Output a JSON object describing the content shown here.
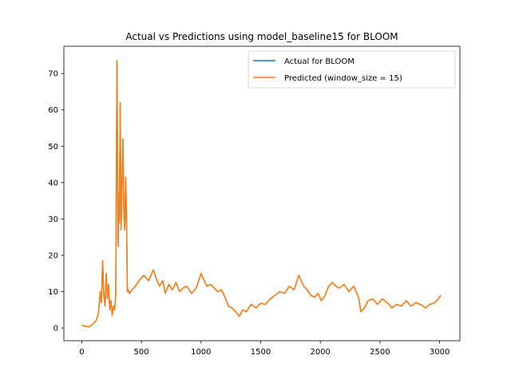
{
  "chart_data": {
    "type": "line",
    "title": "Actual vs Predictions using model_baseline15 for BLOOM",
    "xlabel": "",
    "ylabel": "",
    "xlim": [
      -150,
      3170
    ],
    "ylim": [
      -3.5,
      77.5
    ],
    "xticks": [
      0,
      500,
      1000,
      1500,
      2000,
      2500,
      3000
    ],
    "yticks": [
      0,
      10,
      20,
      30,
      40,
      50,
      60,
      70
    ],
    "grid": false,
    "legend_position": "top-right",
    "series": [
      {
        "name": "Actual for BLOOM",
        "color": "#1f77b4",
        "x": [
          0,
          30,
          60,
          90,
          120,
          140,
          155,
          165,
          175,
          185,
          195,
          205,
          215,
          225,
          235,
          245,
          255,
          265,
          275,
          285,
          295,
          305,
          310,
          315,
          322,
          330,
          338,
          345,
          352,
          360,
          368,
          375,
          382,
          390,
          400,
          420,
          450,
          480,
          520,
          560,
          600,
          620,
          650,
          680,
          700,
          730,
          760,
          790,
          820,
          850,
          880,
          920,
          960,
          1000,
          1020,
          1050,
          1080,
          1110,
          1140,
          1170,
          1200,
          1230,
          1260,
          1290,
          1320,
          1350,
          1380,
          1420,
          1460,
          1500,
          1540,
          1580,
          1620,
          1660,
          1700,
          1740,
          1780,
          1820,
          1840,
          1860,
          1890,
          1920,
          1950,
          1980,
          2010,
          2040,
          2070,
          2100,
          2130,
          2160,
          2200,
          2240,
          2280,
          2300,
          2320,
          2340,
          2370,
          2400,
          2440,
          2480,
          2520,
          2560,
          2600,
          2640,
          2680,
          2720,
          2760,
          2800,
          2840,
          2880,
          2920,
          2960,
          2990,
          3010
        ],
        "y": [
          0.8,
          0.5,
          0.3,
          1.0,
          2.0,
          4.0,
          10.0,
          7.0,
          18.5,
          9.0,
          6.0,
          15.0,
          8.0,
          12.0,
          5.0,
          7.5,
          3.5,
          6.0,
          5.0,
          9.0,
          73.5,
          22.5,
          37.0,
          29.0,
          62.0,
          27.0,
          40.0,
          52.0,
          33.0,
          27.0,
          41.5,
          32.0,
          10.0,
          10.5,
          9.5,
          10.5,
          11.5,
          13.0,
          14.5,
          13.0,
          16.0,
          14.0,
          11.5,
          13.0,
          9.5,
          12.0,
          10.5,
          12.5,
          10.0,
          11.0,
          11.5,
          9.5,
          11.0,
          15.0,
          13.5,
          11.5,
          12.0,
          11.0,
          10.0,
          10.5,
          8.5,
          6.0,
          5.5,
          4.5,
          3.2,
          5.0,
          4.5,
          6.5,
          5.5,
          6.8,
          6.5,
          8.0,
          9.0,
          10.0,
          9.5,
          11.5,
          10.5,
          14.5,
          13.0,
          11.5,
          10.5,
          9.0,
          8.5,
          9.5,
          7.5,
          9.0,
          11.5,
          12.5,
          11.5,
          11.0,
          12.0,
          10.0,
          11.5,
          10.0,
          8.5,
          4.5,
          5.5,
          7.5,
          8.0,
          6.5,
          8.0,
          7.0,
          5.5,
          6.5,
          6.0,
          7.5,
          6.0,
          7.0,
          6.5,
          5.5,
          6.5,
          7.0,
          8.0,
          9.0
        ]
      },
      {
        "name": "Predicted (window_size = 15)",
        "color": "#ff7f0e",
        "x": [
          0,
          30,
          60,
          90,
          120,
          140,
          155,
          165,
          175,
          185,
          195,
          205,
          215,
          225,
          235,
          245,
          255,
          265,
          275,
          285,
          295,
          305,
          310,
          315,
          322,
          330,
          338,
          345,
          352,
          360,
          368,
          375,
          382,
          390,
          400,
          420,
          450,
          480,
          520,
          560,
          600,
          620,
          650,
          680,
          700,
          730,
          760,
          790,
          820,
          850,
          880,
          920,
          960,
          1000,
          1020,
          1050,
          1080,
          1110,
          1140,
          1170,
          1200,
          1230,
          1260,
          1290,
          1320,
          1350,
          1380,
          1420,
          1460,
          1500,
          1540,
          1580,
          1620,
          1660,
          1700,
          1740,
          1780,
          1820,
          1840,
          1860,
          1890,
          1920,
          1950,
          1980,
          2010,
          2040,
          2070,
          2100,
          2130,
          2160,
          2200,
          2240,
          2280,
          2300,
          2320,
          2340,
          2370,
          2400,
          2440,
          2480,
          2520,
          2560,
          2600,
          2640,
          2680,
          2720,
          2760,
          2800,
          2840,
          2880,
          2920,
          2960,
          2990,
          3010
        ],
        "y": [
          0.8,
          0.5,
          0.3,
          1.0,
          2.0,
          4.0,
          10.0,
          7.0,
          18.5,
          9.0,
          6.0,
          15.0,
          8.0,
          12.0,
          5.0,
          7.5,
          3.5,
          6.0,
          5.0,
          9.0,
          73.5,
          22.5,
          37.0,
          29.0,
          62.0,
          27.0,
          40.0,
          52.0,
          33.0,
          27.0,
          41.5,
          32.0,
          10.0,
          10.5,
          9.5,
          10.5,
          11.5,
          13.0,
          14.5,
          13.0,
          16.0,
          14.0,
          11.5,
          13.0,
          9.5,
          12.0,
          10.5,
          12.5,
          10.0,
          11.0,
          11.5,
          9.5,
          11.0,
          15.0,
          13.5,
          11.5,
          12.0,
          11.0,
          10.0,
          10.5,
          8.5,
          6.0,
          5.5,
          4.5,
          3.2,
          5.0,
          4.5,
          6.5,
          5.5,
          6.8,
          6.5,
          8.0,
          9.0,
          10.0,
          9.5,
          11.5,
          10.5,
          14.5,
          13.0,
          11.5,
          10.5,
          9.0,
          8.5,
          9.5,
          7.5,
          9.0,
          11.5,
          12.5,
          11.5,
          11.0,
          12.0,
          10.0,
          11.5,
          10.0,
          8.5,
          4.5,
          5.5,
          7.5,
          8.0,
          6.5,
          8.0,
          7.0,
          5.5,
          6.5,
          6.0,
          7.5,
          6.0,
          7.0,
          6.5,
          5.5,
          6.5,
          7.0,
          8.0,
          9.0
        ]
      }
    ]
  }
}
